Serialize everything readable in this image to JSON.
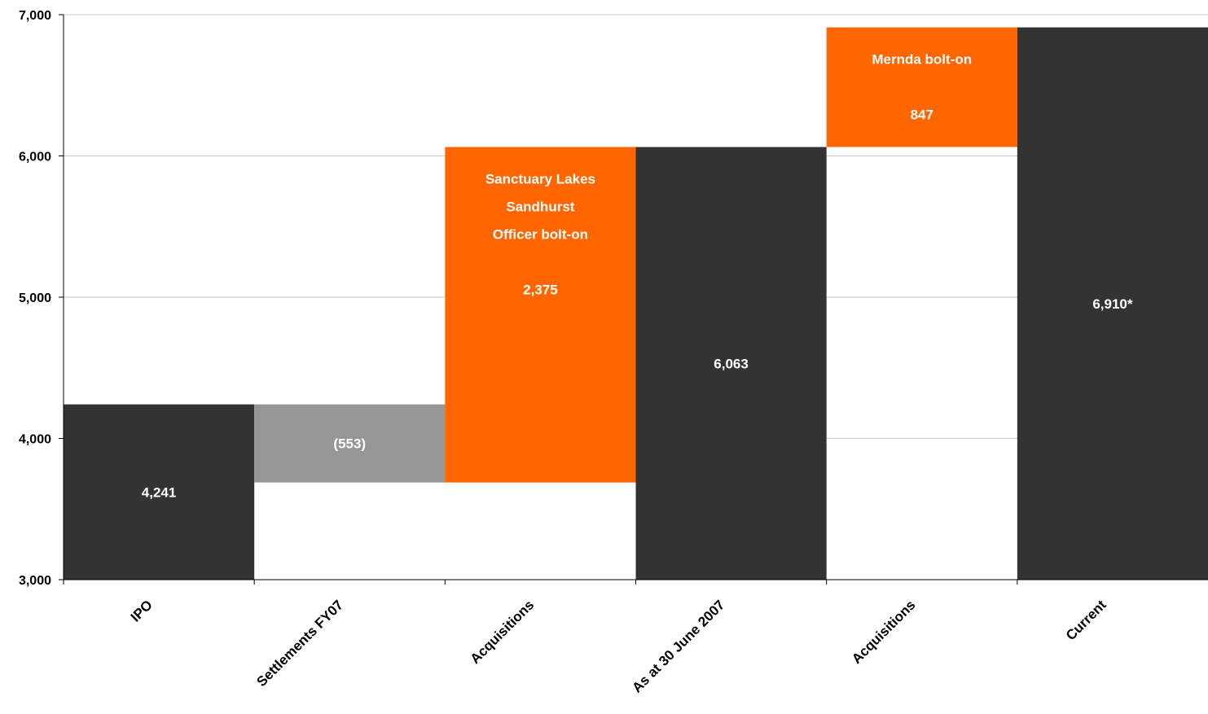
{
  "chart_data": {
    "type": "bar",
    "subtype": "waterfall",
    "categories": [
      "IPO",
      "Settlements FY07",
      "Acquisitions",
      "As at 30 June 2007",
      "Acquisitions",
      "Current"
    ],
    "bars": [
      {
        "category": "IPO",
        "base": 3000,
        "top": 4241,
        "kind": "total",
        "labels": [
          "4,241"
        ]
      },
      {
        "category": "Settlements FY07",
        "base": 3688,
        "top": 4241,
        "kind": "decrease",
        "labels": [
          "(553)"
        ]
      },
      {
        "category": "Acquisitions",
        "base": 3688,
        "top": 6063,
        "kind": "increase",
        "labels": [
          "Sanctuary Lakes",
          "Sandhurst",
          "Officer bolt-on",
          "",
          "2,375"
        ]
      },
      {
        "category": "As at 30 June 2007",
        "base": 3000,
        "top": 6063,
        "kind": "total",
        "labels": [
          "6,063"
        ]
      },
      {
        "category": "Acquisitions",
        "base": 6063,
        "top": 6910,
        "kind": "increase",
        "labels": [
          "Mernda bolt-on",
          "",
          "847"
        ]
      },
      {
        "category": "Current",
        "base": 3000,
        "top": 6910,
        "kind": "total",
        "labels": [
          "6,910*"
        ]
      }
    ],
    "ylim": [
      3000,
      7000
    ],
    "yticks": [
      3000,
      4000,
      5000,
      6000,
      7000
    ],
    "ytick_labels": [
      "3,000",
      "4,000",
      "5,000",
      "6,000",
      "7,000"
    ],
    "grid": true,
    "colors": {
      "total": "#333333",
      "decrease": "#969696",
      "increase": "#ff6600",
      "label": "#ffffff",
      "grid": "#c8c8c8",
      "axis": "#000000"
    }
  }
}
